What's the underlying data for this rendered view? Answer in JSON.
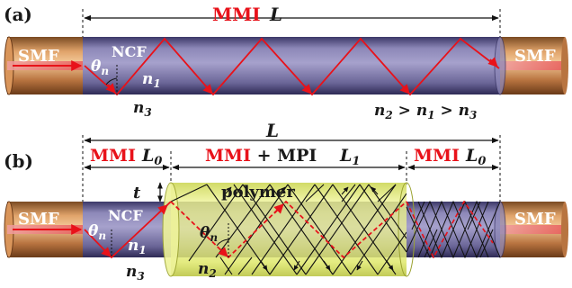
{
  "panel_a": {
    "panel_label": "(a)",
    "mmi": "MMI",
    "length": "L",
    "smf_left": "SMF",
    "smf_right": "SMF",
    "ncf": "NCF",
    "theta": "θ",
    "theta_sub": "n",
    "n1": "n",
    "n1_sub": "1",
    "n3": "n",
    "n3_sub": "3",
    "ineq_n2": "n",
    "ineq_n2_sub": "2",
    "ineq_gt1": " > ",
    "ineq_n1": "n",
    "ineq_n1_sub": "1",
    "ineq_gt2": " > ",
    "ineq_n3": "n",
    "ineq_n3_sub": "3"
  },
  "panel_b": {
    "panel_label": "(b)",
    "length": "L",
    "mmi_left": "MMI",
    "l0_left": "L",
    "l0_left_sub": "0",
    "mmi_mid": "MMI",
    "plus": " + ",
    "mpi": "MPI",
    "l1": "L",
    "l1_sub": "1",
    "mmi_right": "MMI",
    "l0_right": "L",
    "l0_right_sub": "0",
    "t": "t",
    "polymer": "polymer",
    "smf_left": "SMF",
    "smf_right": "SMF",
    "ncf": "NCF",
    "theta_left": "θ",
    "theta_left_sub": "n",
    "theta_mid": "θ",
    "theta_mid_sub": "n",
    "n1": "n",
    "n1_sub": "1",
    "n3": "n",
    "n3_sub": "3",
    "n2": "n",
    "n2_sub": "2"
  },
  "colors": {
    "smf_copper": "#c8864e",
    "ncf_purple": "#6f6a9a",
    "polymer_yellow": "#e8ee78",
    "ray_red": "#e8121a",
    "ray_black": "#111111"
  }
}
